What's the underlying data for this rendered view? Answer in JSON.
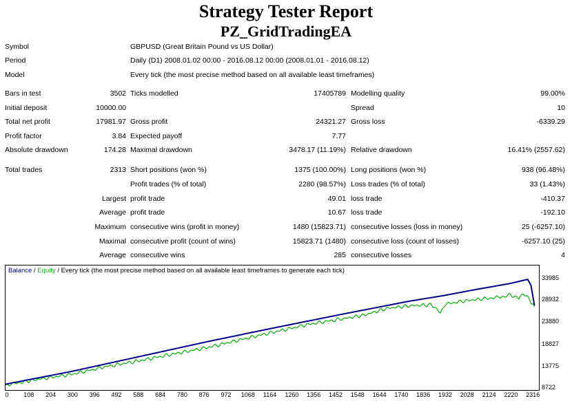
{
  "report": {
    "title": "Strategy Tester Report",
    "subtitle": "PZ_GridTradingEA"
  },
  "info": [
    {
      "label": "Symbol",
      "value": "GBPUSD (Great Britain Pound vs US Dollar)"
    },
    {
      "label": "Period",
      "value": "Daily (D1) 2008.01.02 00:00 - 2016.08.12 00:00 (2008.01.01 - 2016.08.12)"
    },
    {
      "label": "Model",
      "value": "Every tick (the most precise method based on all available least timeframes)"
    }
  ],
  "stats": {
    "bars_label": "Bars in test",
    "bars": "3502",
    "ticks_label": "Ticks modelled",
    "ticks": "17405789",
    "quality_label": "Modelling quality",
    "quality": "99.00%",
    "deposit_label": "Initial deposit",
    "deposit": "10000.00",
    "spread_label": "Spread",
    "spread": "10",
    "net_label": "Total net profit",
    "net": "17981.97",
    "gp_label": "Gross profit",
    "gp": "24321.27",
    "gl_label": "Gross loss",
    "gl": "-6339.29",
    "pf_label": "Profit factor",
    "pf": "3.84",
    "ep_label": "Expected payoff",
    "ep": "7.77",
    "add_label": "Absolute drawdown",
    "add": "174.28",
    "mdd_label": "Maximal drawdown",
    "mdd": "3478.17 (11.19%)",
    "rdd_label": "Relative drawdown",
    "rdd": "16.41% (2557.62)",
    "tt_label": "Total trades",
    "tt": "2313",
    "sp_label": "Short positions (won %)",
    "sp": "1375 (100.00%)",
    "lp_label": "Long positions (won %)",
    "lp": "938 (96.48%)",
    "pt_label": "Profit trades (% of total)",
    "pt": "2280 (98.57%)",
    "lt_label": "Loss trades (% of total)",
    "lt": "33 (1.43%)",
    "largest": "Largest",
    "lpt_label": "profit trade",
    "lpt": "49.01",
    "llt_label": "loss trade",
    "llt": "-410.37",
    "average": "Average",
    "apt_label": "profit trade",
    "apt": "10.67",
    "alt_label": "loss trade",
    "alt": "-192.10",
    "maximum": "Maximum",
    "mcw_label": "consecutive wins (profit in money)",
    "mcw": "1480 (15823.71)",
    "mcl_label": "consecutive losses (loss in money)",
    "mcl": "25 (-6257.10)",
    "maximal": "Maximal",
    "mcp_label": "consecutive profit (count of wins)",
    "mcp": "15823.71 (1480)",
    "mclo_label": "consecutive loss (count of losses)",
    "mclo": "-6257.10 (25)",
    "average2": "Average",
    "acw_label": "consecutive wins",
    "acw": "285",
    "acl_label": "consecutive losses",
    "acl": "4"
  },
  "chart_legend": {
    "balance": "Balance",
    "sep1": " / ",
    "equity": "Equity",
    "sep2": " / Every tick (the most precise method based on all available least timeframes to generate each tick)"
  },
  "colors": {
    "balance": "#00008b",
    "equity": "#00b000"
  },
  "chart_data": {
    "type": "line",
    "xticks": [
      "0",
      "108",
      "204",
      "300",
      "396",
      "492",
      "588",
      "684",
      "780",
      "876",
      "972",
      "1068",
      "1164",
      "1260",
      "1356",
      "1452",
      "1548",
      "1644",
      "1740",
      "1836",
      "1932",
      "2028",
      "2124",
      "2220",
      "2316"
    ],
    "yticks": [
      "33985",
      "28932",
      "23880",
      "18827",
      "13775",
      "8722"
    ],
    "ylim": [
      8722,
      35500
    ],
    "xlim": [
      0,
      2380
    ],
    "series": [
      {
        "name": "Balance",
        "x": [
          0,
          300,
          600,
          900,
          1200,
          1500,
          1800,
          1950,
          2100,
          2250,
          2330,
          2345,
          2360
        ],
        "y": [
          9600,
          12700,
          16200,
          19700,
          23000,
          26200,
          29300,
          30600,
          32100,
          33500,
          34500,
          33000,
          28300
        ]
      },
      {
        "name": "Equity",
        "x": [
          0,
          80,
          150,
          300,
          450,
          600,
          750,
          900,
          1050,
          1200,
          1350,
          1500,
          1600,
          1700,
          1800,
          1900,
          1940,
          1960,
          2050,
          2150,
          2200,
          2250,
          2290,
          2310,
          2330,
          2345,
          2360
        ],
        "y": [
          9400,
          10200,
          10800,
          12000,
          13800,
          15200,
          16800,
          18300,
          20200,
          22000,
          23800,
          25100,
          26000,
          27600,
          28200,
          28500,
          26600,
          28600,
          29400,
          30000,
          30200,
          30800,
          30000,
          31200,
          30500,
          29000,
          28000
        ]
      }
    ]
  }
}
